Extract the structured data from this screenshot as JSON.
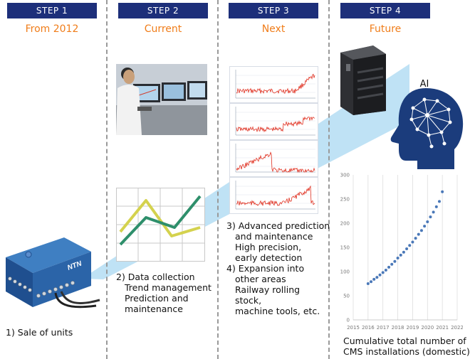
{
  "steps": [
    {
      "label": "STEP 1",
      "period": "From 2012"
    },
    {
      "label": "STEP 2",
      "period": "Current"
    },
    {
      "label": "STEP 3",
      "period": "Next"
    },
    {
      "label": "STEP 4",
      "period": "Future"
    }
  ],
  "step1": {
    "brand": "NTN",
    "text": "1) Sale of units"
  },
  "step2": {
    "lines": [
      "2) Data collection",
      "Trend management",
      "Prediction and",
      "maintenance"
    ]
  },
  "step3": {
    "lines": [
      "3) Advanced prediction",
      "and maintenance",
      "High precision,",
      "early detection",
      "4) Expansion into",
      "other areas",
      "Railway rolling",
      "stock,",
      "machine tools, etc."
    ]
  },
  "step4": {
    "ai_label": "AI",
    "caption": [
      "Cumulative total number of",
      "CMS installations (domestic)"
    ]
  },
  "colors": {
    "tab": "#1d2f7a",
    "period": "#f07d1a",
    "beam": "#a9d8f2",
    "head": "#1b3c7c",
    "dot": "#4a78b8",
    "line_yellow": "#d4d24e",
    "line_green": "#2e8f6b",
    "signal": "#e03020"
  },
  "chart_data": {
    "type": "scatter",
    "x_ticks": [
      "2015",
      "2016",
      "2017",
      "2018",
      "2019",
      "2020",
      "2021",
      "2022"
    ],
    "y_ticks": [
      "0",
      "50",
      "100",
      "150",
      "200",
      "250",
      "300"
    ],
    "xlim": [
      2015,
      2022
    ],
    "ylim": [
      0,
      300
    ],
    "x": [
      2016.0,
      2016.2,
      2016.4,
      2016.6,
      2016.8,
      2017.0,
      2017.2,
      2017.4,
      2017.6,
      2017.8,
      2018.0,
      2018.2,
      2018.4,
      2018.6,
      2018.8,
      2019.0,
      2019.2,
      2019.4,
      2019.6,
      2019.8,
      2020.0,
      2020.2,
      2020.4,
      2020.6,
      2020.8,
      2021.0
    ],
    "y": [
      75,
      79,
      84,
      88,
      93,
      98,
      103,
      109,
      115,
      121,
      128,
      134,
      140,
      147,
      154,
      161,
      169,
      177,
      185,
      194,
      203,
      213,
      223,
      234,
      245,
      265
    ]
  }
}
